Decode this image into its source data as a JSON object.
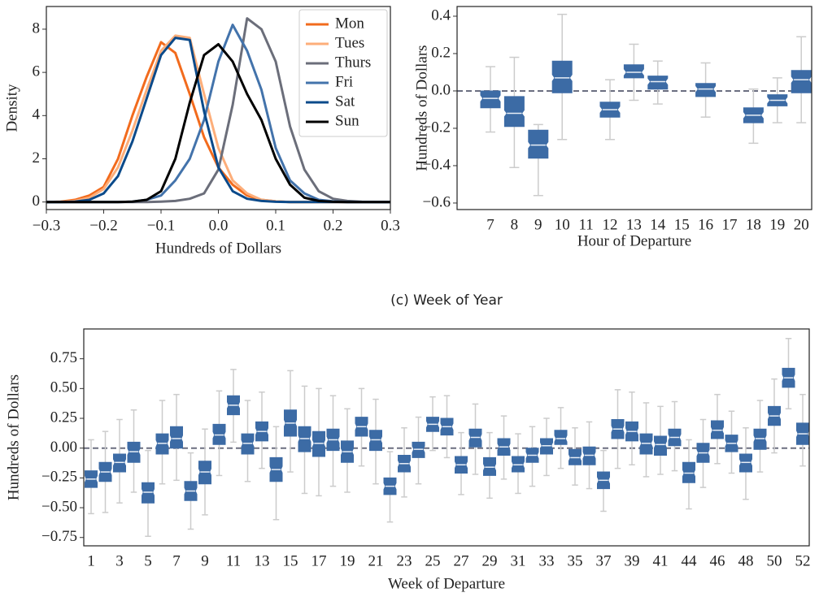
{
  "chart_data": [
    {
      "type": "line",
      "xlabel": "Hundreds of Dollars",
      "ylabel": "Density",
      "x": [
        -0.3,
        -0.275,
        -0.25,
        -0.225,
        -0.2,
        -0.175,
        -0.15,
        -0.125,
        -0.1,
        -0.075,
        -0.05,
        -0.025,
        0,
        0.025,
        0.05,
        0.075,
        0.1,
        0.125,
        0.15,
        0.175,
        0.2,
        0.225,
        0.25,
        0.275,
        0.3
      ],
      "series": [
        {
          "name": "Mon",
          "color": "#f26b1d",
          "values": [
            0,
            0.02,
            0.1,
            0.3,
            0.7,
            2.0,
            4.0,
            5.8,
            7.4,
            6.9,
            5.0,
            3.0,
            1.6,
            0.8,
            0.3,
            0.1,
            0.03,
            0,
            0,
            0,
            0,
            0,
            0,
            0,
            0
          ]
        },
        {
          "name": "Tues",
          "color": "#fdae7a",
          "values": [
            0,
            0.01,
            0.05,
            0.2,
            0.6,
            1.6,
            3.3,
            5.2,
            7.0,
            7.7,
            7.6,
            5.0,
            2.5,
            1.0,
            0.4,
            0.1,
            0.03,
            0,
            0,
            0,
            0,
            0,
            0,
            0,
            0
          ]
        },
        {
          "name": "Thurs",
          "color": "#6b6e7a",
          "values": [
            0,
            0,
            0,
            0,
            0,
            0,
            0,
            0,
            0.02,
            0.05,
            0.15,
            0.4,
            1.5,
            4.5,
            8.5,
            8.0,
            6.5,
            3.5,
            1.5,
            0.5,
            0.15,
            0.05,
            0.01,
            0,
            0
          ]
        },
        {
          "name": "Fri",
          "color": "#4373ab",
          "values": [
            0,
            0,
            0,
            0,
            0,
            0,
            0.02,
            0.1,
            0.3,
            1.0,
            2.0,
            3.8,
            6.5,
            8.2,
            7.0,
            5.2,
            2.5,
            1.0,
            0.4,
            0.1,
            0.03,
            0,
            0,
            0,
            0
          ]
        },
        {
          "name": "Sat",
          "color": "#0b4a8a",
          "values": [
            0,
            0,
            0.02,
            0.1,
            0.4,
            1.2,
            2.8,
            4.8,
            6.8,
            7.6,
            7.5,
            4.2,
            1.6,
            0.5,
            0.15,
            0.05,
            0.01,
            0,
            0,
            0,
            0,
            0,
            0,
            0,
            0
          ]
        },
        {
          "name": "Sun",
          "color": "#000000",
          "values": [
            0,
            0,
            0,
            0,
            0,
            0,
            0.02,
            0.1,
            0.5,
            2.0,
            4.6,
            6.8,
            7.3,
            6.5,
            5.0,
            3.8,
            2.0,
            0.8,
            0.2,
            0.05,
            0.01,
            0,
            0,
            0,
            0
          ]
        }
      ],
      "xlim": [
        -0.3,
        0.3
      ],
      "ylim": [
        -0.35,
        9.05
      ],
      "xticks": [
        {
          "value": -0.3,
          "label": "−0.3"
        },
        {
          "value": -0.2,
          "label": "−0.2"
        },
        {
          "value": -0.1,
          "label": "−0.1"
        },
        {
          "value": 0,
          "label": "0.0"
        },
        0.1,
        0.2,
        0.3
      ],
      "yticks": [
        0,
        2,
        4,
        6,
        8
      ],
      "legend": "upper right",
      "grid": false
    },
    {
      "type": "box",
      "xlabel": "Hour of Departure",
      "ylabel": "Hundreds of Dollars",
      "color": "#3c6ba5",
      "categories": [
        "7",
        "8",
        "9",
        "10",
        "11",
        "12",
        "13",
        "14",
        "15",
        "16",
        "17",
        "18",
        "19",
        "20"
      ],
      "low": [
        -0.22,
        -0.41,
        -0.56,
        -0.26,
        null,
        -0.26,
        -0.05,
        -0.07,
        null,
        -0.14,
        null,
        -0.28,
        -0.17,
        -0.17
      ],
      "q1": [
        -0.09,
        -0.19,
        -0.36,
        -0.01,
        null,
        -0.14,
        0.07,
        0.01,
        null,
        -0.03,
        null,
        -0.17,
        -0.08,
        -0.01
      ],
      "median": [
        -0.04,
        -0.12,
        -0.29,
        0.07,
        null,
        -0.1,
        0.1,
        0.05,
        null,
        0.01,
        null,
        -0.13,
        -0.05,
        0.06
      ],
      "q3": [
        0.0,
        -0.03,
        -0.21,
        0.16,
        null,
        -0.06,
        0.14,
        0.08,
        null,
        0.04,
        null,
        -0.09,
        -0.02,
        0.11
      ],
      "high": [
        0.13,
        0.18,
        -0.18,
        0.41,
        null,
        0.06,
        0.25,
        0.16,
        null,
        0.15,
        null,
        0.01,
        0.07,
        0.29
      ],
      "hline": 0,
      "ylim": [
        -0.635,
        0.452
      ],
      "yticks": [
        {
          "value": -0.6,
          "label": "−0.6"
        },
        {
          "value": -0.4,
          "label": "−0.4"
        },
        {
          "value": -0.2,
          "label": "−0.2"
        },
        {
          "value": 0,
          "label": "0.0"
        },
        0.2,
        0.4
      ],
      "grid": false
    },
    {
      "type": "box",
      "title": "(c) Week of Year",
      "xlabel": "Week of Departure",
      "ylabel": "Hundreds of Dollars",
      "color": "#3c6ba5",
      "categories": [
        "1",
        null,
        "3",
        null,
        "5",
        null,
        "7",
        null,
        "9",
        null,
        "11",
        null,
        "13",
        null,
        "15",
        null,
        "17",
        null,
        "19",
        null,
        "21",
        null,
        "23",
        null,
        "25",
        null,
        "27",
        null,
        "29",
        null,
        "31",
        null,
        "33",
        null,
        "35",
        null,
        "37",
        null,
        "39",
        null,
        "41",
        null,
        "44",
        null,
        "46",
        null,
        "48",
        null,
        "50",
        null,
        "52"
      ],
      "low": [
        -0.55,
        -0.54,
        -0.46,
        -0.37,
        -0.74,
        -0.3,
        -0.27,
        -0.68,
        -0.56,
        -0.23,
        0.05,
        -0.28,
        -0.17,
        -0.6,
        -0.2,
        -0.38,
        -0.4,
        -0.32,
        -0.37,
        -0.15,
        -0.3,
        -0.62,
        -0.41,
        -0.3,
        -0.02,
        -0.08,
        -0.39,
        -0.22,
        -0.42,
        -0.26,
        -0.38,
        -0.32,
        -0.23,
        -0.17,
        -0.31,
        -0.34,
        -0.53,
        -0.17,
        -0.14,
        -0.24,
        -0.22,
        -0.19,
        -0.51,
        -0.33,
        -0.13,
        -0.21,
        -0.43,
        -0.2,
        -0.04,
        0.33,
        -0.15
      ],
      "q1": [
        -0.33,
        -0.28,
        -0.2,
        -0.12,
        -0.46,
        -0.05,
        0.0,
        -0.44,
        -0.3,
        0.03,
        0.28,
        -0.05,
        0.06,
        -0.28,
        0.1,
        -0.03,
        -0.07,
        -0.02,
        -0.12,
        0.1,
        -0.02,
        -0.39,
        -0.2,
        -0.08,
        0.14,
        0.11,
        -0.21,
        0.01,
        -0.23,
        -0.06,
        -0.2,
        -0.12,
        -0.05,
        0.03,
        -0.14,
        -0.14,
        -0.34,
        0.08,
        0.06,
        -0.05,
        -0.06,
        0.02,
        -0.29,
        -0.12,
        0.08,
        -0.03,
        -0.2,
        -0.01,
        0.19,
        0.51,
        0.03
      ],
      "median": [
        -0.26,
        -0.2,
        -0.12,
        -0.03,
        -0.37,
        0.04,
        0.08,
        -0.36,
        -0.2,
        0.11,
        0.36,
        0.04,
        0.14,
        -0.18,
        0.21,
        0.08,
        0.04,
        0.07,
        -0.03,
        0.18,
        0.07,
        -0.32,
        -0.13,
        -0.01,
        0.2,
        0.18,
        -0.14,
        0.09,
        -0.16,
        0.01,
        -0.14,
        -0.06,
        0.02,
        0.08,
        -0.08,
        -0.06,
        -0.27,
        0.16,
        0.14,
        0.04,
        0.03,
        0.09,
        -0.21,
        -0.04,
        0.15,
        0.04,
        -0.12,
        0.08,
        0.27,
        0.59,
        0.12
      ],
      "q3": [
        -0.19,
        -0.12,
        -0.05,
        0.05,
        -0.29,
        0.12,
        0.18,
        -0.28,
        -0.11,
        0.2,
        0.44,
        0.12,
        0.22,
        -0.08,
        0.32,
        0.18,
        0.14,
        0.16,
        0.06,
        0.26,
        0.15,
        -0.25,
        -0.06,
        0.05,
        0.26,
        0.25,
        -0.07,
        0.16,
        -0.08,
        0.08,
        -0.07,
        0.0,
        0.08,
        0.15,
        -0.01,
        0.01,
        -0.2,
        0.24,
        0.22,
        0.12,
        0.1,
        0.16,
        -0.12,
        0.04,
        0.23,
        0.11,
        -0.05,
        0.16,
        0.35,
        0.67,
        0.21
      ],
      "high": [
        0.07,
        0.14,
        0.24,
        0.32,
        -0.02,
        0.4,
        0.45,
        -0.04,
        0.16,
        0.48,
        0.66,
        0.4,
        0.47,
        0.18,
        0.65,
        0.52,
        0.5,
        0.44,
        0.33,
        0.5,
        0.41,
        -0.03,
        0.17,
        0.26,
        0.43,
        0.44,
        0.13,
        0.37,
        0.13,
        0.27,
        0.12,
        0.18,
        0.25,
        0.34,
        0.17,
        0.22,
        -0.02,
        0.49,
        0.47,
        0.38,
        0.35,
        0.39,
        0.07,
        0.24,
        0.45,
        0.31,
        0.17,
        0.4,
        0.58,
        0.92,
        0.45
      ],
      "hline": 0,
      "ylim": [
        -0.82,
        1.0
      ],
      "yticks": [
        {
          "value": -0.75,
          "label": "−0.75"
        },
        {
          "value": -0.5,
          "label": "−0.50"
        },
        {
          "value": -0.25,
          "label": "−0.25"
        },
        {
          "value": 0,
          "label": "0.00"
        },
        0.25,
        {
          "value": 0.5,
          "label": "0.50"
        },
        0.75
      ],
      "grid": false
    }
  ]
}
